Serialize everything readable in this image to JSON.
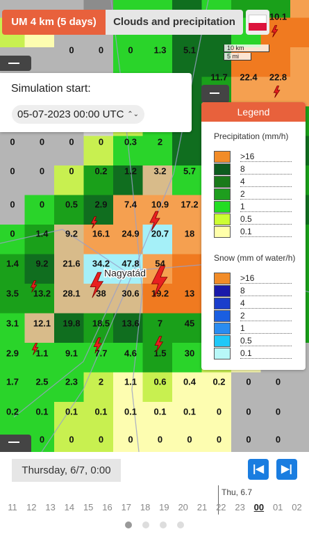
{
  "header": {
    "model": "UM 4 km (5 days)",
    "layer": "Clouds and precipitation"
  },
  "scale": {
    "km": "10 km",
    "mi": "5 mi"
  },
  "simulation": {
    "label": "Simulation start:",
    "value": "05-07-2023 00:00 UTC"
  },
  "map": {
    "city": "Nagyatád",
    "cells": [
      [
        null,
        null,
        null,
        null,
        null,
        null,
        null,
        null,
        null,
        "10.1"
      ],
      [
        null,
        null,
        "0",
        "0",
        "0",
        "1.3",
        "5.1"
      ],
      [
        null,
        null,
        null,
        null,
        null,
        null,
        null,
        "11.7",
        "22.4",
        "22.8"
      ],
      [
        "0",
        "0",
        "0",
        "0",
        "0.3",
        "2"
      ],
      [
        "0",
        "0",
        "0",
        "0.2",
        "1.2",
        "3.2",
        "5.7"
      ],
      [
        "0",
        "0",
        "0.5",
        "2.9",
        "7.4",
        "10.9",
        "17.2"
      ],
      [
        "0",
        "1.4",
        "9.2",
        "16.1",
        "24.9",
        "20.7",
        "18"
      ],
      [
        "1.4",
        "9.2",
        "21.6",
        "34.2",
        "47.8",
        "54"
      ],
      [
        "3.5",
        "13.2",
        "28.1",
        "38",
        "30.6",
        "19.2",
        "13"
      ],
      [
        "3.1",
        "12.1",
        "19.8",
        "18.5",
        "13.6",
        "7",
        "45"
      ],
      [
        "2.9",
        "1.1",
        "9.1",
        "7.7",
        "4.6",
        "1.5",
        "30"
      ],
      [
        "1.7",
        "2.5",
        "2.3",
        "2",
        "1.1",
        "0.6",
        "0.4",
        "0.2",
        "0",
        "0"
      ],
      [
        "0.2",
        "0.1",
        "0.1",
        "0.1",
        "0.1",
        "0.1",
        "0.1",
        "0",
        "0",
        "0"
      ],
      [
        null,
        "0",
        "0",
        "0",
        "0",
        "0",
        "0",
        "0",
        "0",
        "0"
      ]
    ]
  },
  "legend": {
    "title": "Legend",
    "precipitation": {
      "title": "Precipitation (mm/h)",
      "items": [
        {
          "label": ">16",
          "color": "#f28c28"
        },
        {
          "label": "8",
          "color": "#0d5c1f"
        },
        {
          "label": "4",
          "color": "#1a7a1a"
        },
        {
          "label": "2",
          "color": "#1e9e1e"
        },
        {
          "label": "1",
          "color": "#22dd22"
        },
        {
          "label": "0.5",
          "color": "#ccff33"
        },
        {
          "label": "0.1",
          "color": "#ffffaa"
        }
      ]
    },
    "snow": {
      "title": "Snow (mm of water/h)",
      "items": [
        {
          "label": ">16",
          "color": "#f28c28"
        },
        {
          "label": "8",
          "color": "#1a1aaa"
        },
        {
          "label": "4",
          "color": "#1a3ecc"
        },
        {
          "label": "2",
          "color": "#1a5ee0"
        },
        {
          "label": "1",
          "color": "#2a8cf0"
        },
        {
          "label": "0.5",
          "color": "#20c8f8"
        },
        {
          "label": "0.1",
          "color": "#b8f8f8"
        }
      ]
    }
  },
  "timeline": {
    "current": "Thursday, 6/7, 0:00",
    "day_label": "Thu, 6.7",
    "hours": [
      "11",
      "12",
      "13",
      "14",
      "15",
      "16",
      "17",
      "18",
      "19",
      "20",
      "21",
      "22",
      "23",
      "00",
      "01",
      "02"
    ],
    "selected": 13
  }
}
